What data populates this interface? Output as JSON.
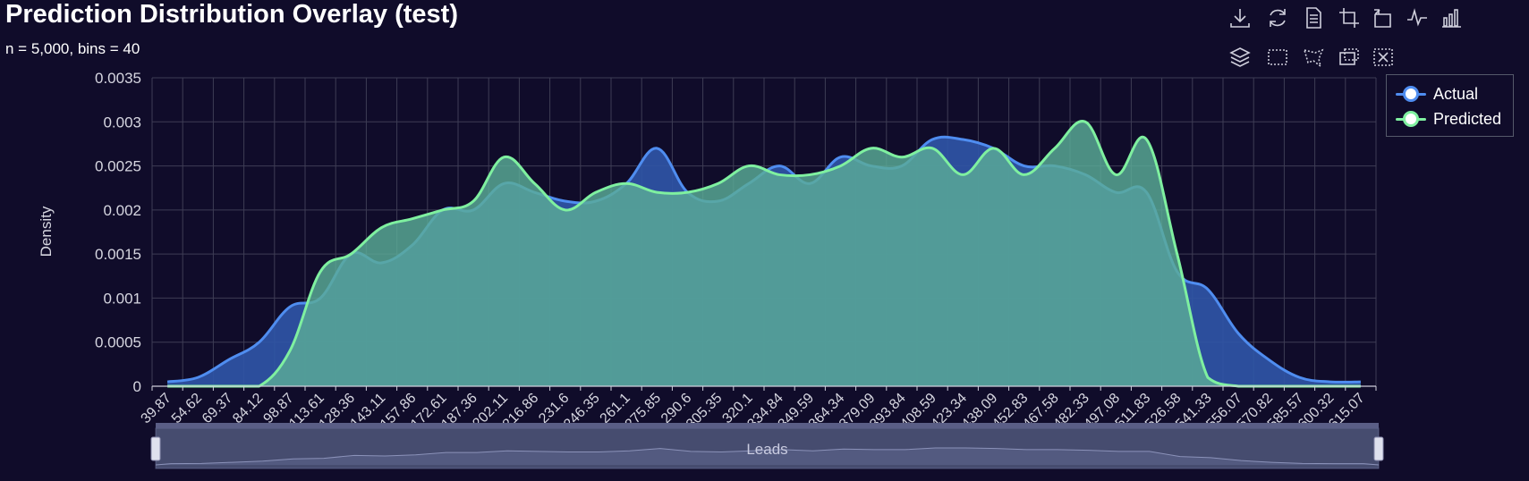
{
  "header": {
    "title": "Prediction Distribution Overlay (test)",
    "subtitle": "n = 5,000, bins = 40"
  },
  "toolbar": {
    "icons": [
      "download-icon",
      "refresh-icon",
      "data-view-icon",
      "zoom-icon",
      "zoom-reset-icon",
      "line-chart-icon",
      "bar-chart-icon",
      "stack-icon",
      "rect-select-icon",
      "lasso-select-icon",
      "keep-select-icon",
      "clear-select-icon"
    ]
  },
  "legend": {
    "actual": "Actual",
    "predicted": "Predicted"
  },
  "colors": {
    "background": "#100c2a",
    "actual": "#4f8df0",
    "actual_fill": "#2f55a6",
    "predicted": "#7ff0a0",
    "predicted_fill": "#5aac97",
    "grid": "#3e3d55",
    "axis_text": "#d6d6e0"
  },
  "chart_data": {
    "type": "area",
    "xlabel": "Leads",
    "ylabel": "Density",
    "ylim": [
      0,
      0.0035
    ],
    "yticks": [
      "0",
      "0.0005",
      "0.001",
      "0.0015",
      "0.002",
      "0.0025",
      "0.003",
      "0.0035"
    ],
    "legend_position": "top-right",
    "grid": true,
    "categories": [
      "39.87",
      "54.62",
      "69.37",
      "84.12",
      "98.87",
      "113.61",
      "128.36",
      "143.11",
      "157.86",
      "172.61",
      "187.36",
      "202.11",
      "216.86",
      "231.6",
      "246.35",
      "261.1",
      "275.85",
      "290.6",
      "305.35",
      "320.1",
      "334.84",
      "349.59",
      "364.34",
      "379.09",
      "393.84",
      "408.59",
      "423.34",
      "438.09",
      "452.83",
      "467.58",
      "482.33",
      "497.08",
      "511.83",
      "526.58",
      "541.33",
      "556.07",
      "570.82",
      "585.57",
      "600.32",
      "615.07"
    ],
    "series": [
      {
        "name": "Actual",
        "values": [
          5e-05,
          0.0001,
          0.0003,
          0.0005,
          0.0009,
          0.001,
          0.0015,
          0.0014,
          0.0016,
          0.002,
          0.002,
          0.0023,
          0.0022,
          0.0021,
          0.0021,
          0.0023,
          0.0027,
          0.0022,
          0.0021,
          0.0023,
          0.0025,
          0.0023,
          0.0026,
          0.0025,
          0.0025,
          0.0028,
          0.0028,
          0.0027,
          0.0025,
          0.0025,
          0.0024,
          0.0022,
          0.0022,
          0.0013,
          0.0011,
          0.0006,
          0.0003,
          0.0001,
          5e-05,
          5e-05
        ]
      },
      {
        "name": "Predicted",
        "values": [
          0,
          0,
          0,
          0,
          0.0004,
          0.0013,
          0.0015,
          0.0018,
          0.0019,
          0.002,
          0.0021,
          0.0026,
          0.0023,
          0.002,
          0.0022,
          0.0023,
          0.0022,
          0.0022,
          0.0023,
          0.0025,
          0.0024,
          0.0024,
          0.0025,
          0.0027,
          0.0026,
          0.0027,
          0.0024,
          0.0027,
          0.0024,
          0.0027,
          0.003,
          0.0024,
          0.0028,
          0.0015,
          0.0001,
          0,
          0,
          0,
          0,
          0
        ]
      }
    ]
  },
  "datazoom": {
    "start_percent": 0,
    "end_percent": 100,
    "label": "Leads"
  }
}
